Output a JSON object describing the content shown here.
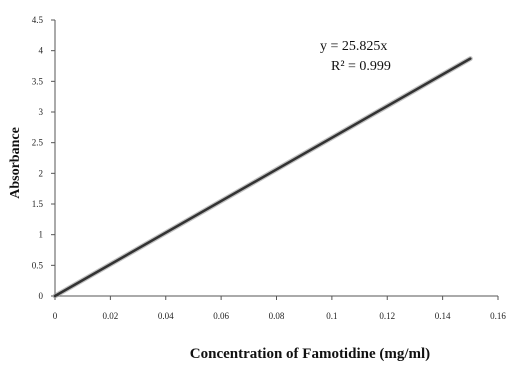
{
  "chart_data": {
    "type": "line",
    "title": "",
    "xlabel": "Concentration of Famotidine  (mg/ml)",
    "ylabel": "Absorbance",
    "xlim": [
      0,
      0.16
    ],
    "ylim": [
      0,
      4.5
    ],
    "x_ticks": [
      "0",
      "0.02",
      "0.04",
      "0.06",
      "0.08",
      "0.1",
      "0.12",
      "0.14",
      "0.16"
    ],
    "y_ticks": [
      "0",
      "0.5",
      "1",
      "1.5",
      "2",
      "2.5",
      "3",
      "3.5",
      "4",
      "4.5"
    ],
    "grid": false,
    "legend": "none",
    "series": [
      {
        "x": [
          0,
          0.15
        ],
        "y": [
          0,
          3.87
        ],
        "color": "#333333"
      }
    ],
    "annotations": [
      "y = 25.825x",
      "R² = 0.999"
    ]
  }
}
